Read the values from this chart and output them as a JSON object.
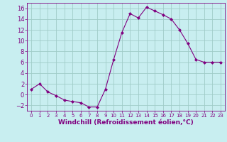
{
  "x": [
    0,
    1,
    2,
    3,
    4,
    5,
    6,
    7,
    8,
    9,
    10,
    11,
    12,
    13,
    14,
    15,
    16,
    17,
    18,
    19,
    20,
    21,
    22,
    23
  ],
  "y": [
    1,
    2,
    0.5,
    -0.2,
    -1,
    -1.3,
    -1.5,
    -2.3,
    -2.3,
    1,
    6.5,
    11.5,
    15,
    14.2,
    16.2,
    15.5,
    14.8,
    14,
    12,
    9.5,
    6.5,
    6,
    6,
    6
  ],
  "line_color": "#800080",
  "marker": "D",
  "marker_size": 2,
  "bg_color": "#c8eef0",
  "grid_color": "#a0ccc8",
  "xlabel": "Windchill (Refroidissement éolien,°C)",
  "xlabel_color": "#800080",
  "tick_color": "#800080",
  "ylim": [
    -3,
    17
  ],
  "xlim": [
    -0.5,
    23.5
  ],
  "yticks": [
    -2,
    0,
    2,
    4,
    6,
    8,
    10,
    12,
    14,
    16
  ],
  "xticks": [
    0,
    1,
    2,
    3,
    4,
    5,
    6,
    7,
    8,
    9,
    10,
    11,
    12,
    13,
    14,
    15,
    16,
    17,
    18,
    19,
    20,
    21,
    22,
    23
  ],
  "xtick_fontsize": 5.0,
  "ytick_fontsize": 6.0,
  "xlabel_fontsize": 6.5
}
